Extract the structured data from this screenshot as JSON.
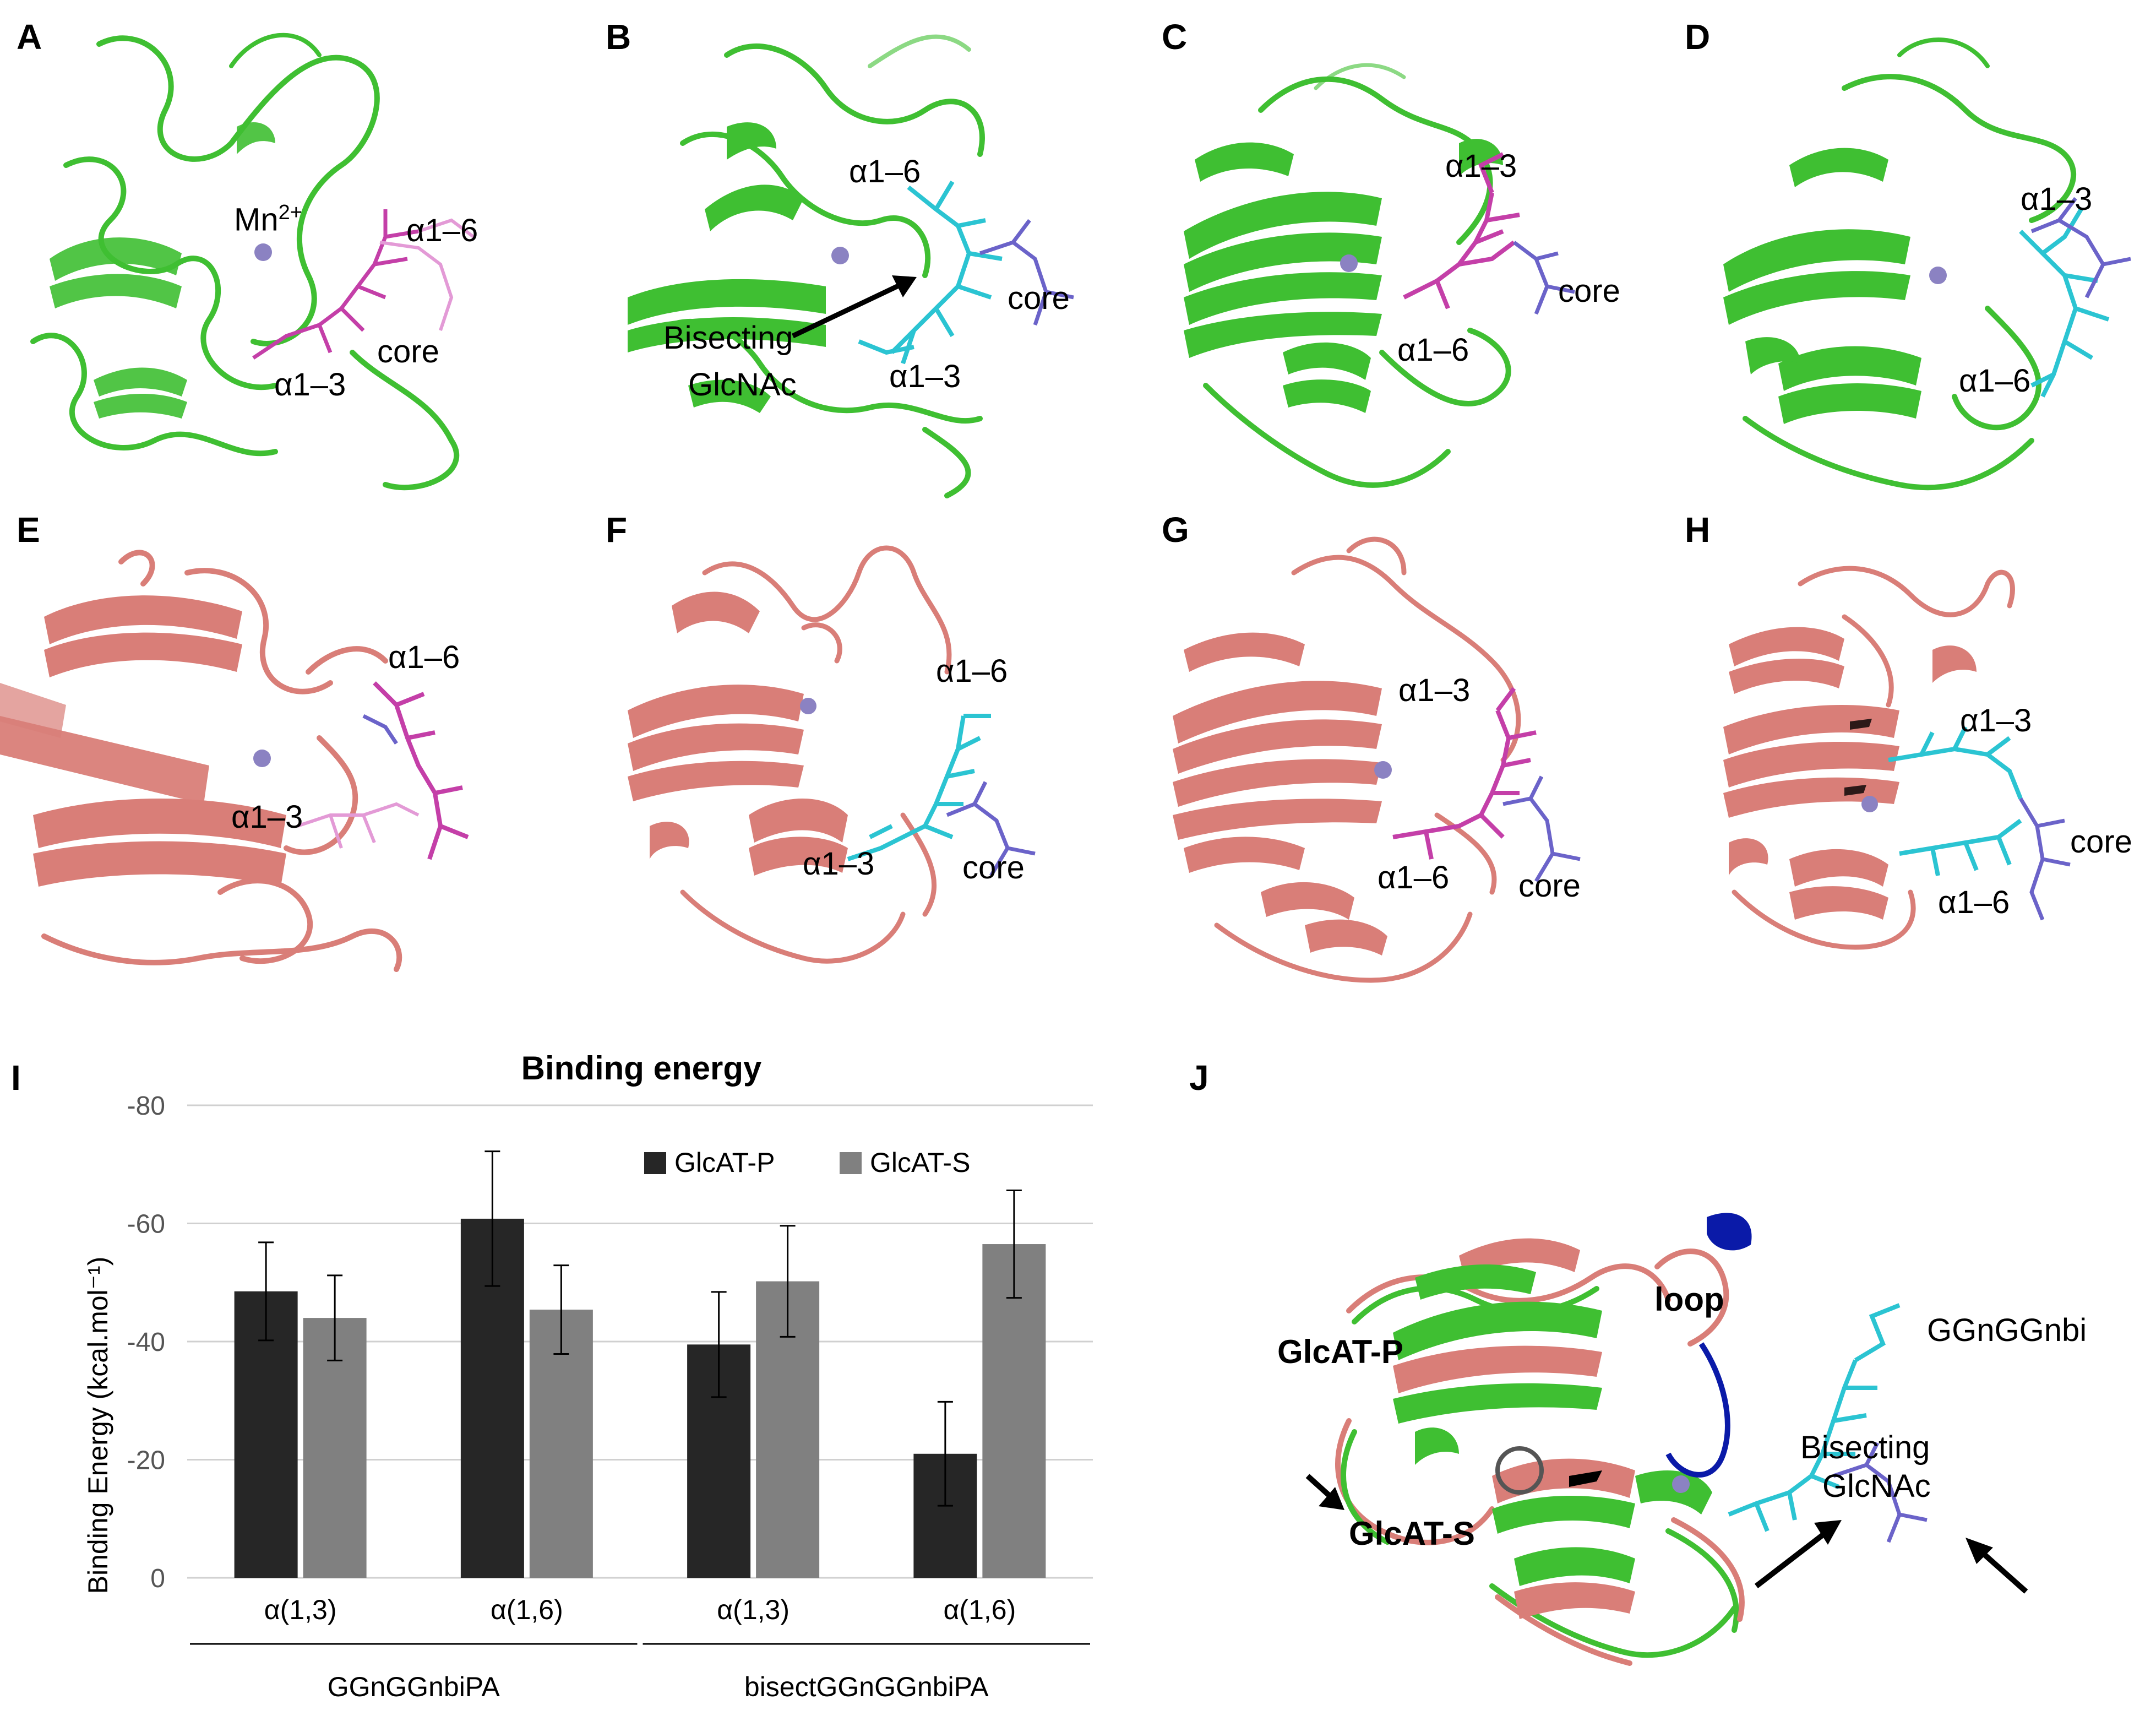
{
  "panels": {
    "A": {
      "label": "A",
      "ann": {
        "mn": "Mn",
        "mn_sup": "2+",
        "a16": "α1–6",
        "core": "core",
        "a13": "α1–3"
      }
    },
    "B": {
      "label": "B",
      "ann": {
        "a16": "α1–6",
        "core": "core",
        "bis1": "Bisecting",
        "bis2": "GlcNAc",
        "a13": "α1–3"
      }
    },
    "C": {
      "label": "C",
      "ann": {
        "a13": "α1–3",
        "core": "core",
        "a16": "α1–6"
      }
    },
    "D": {
      "label": "D",
      "ann": {
        "a13": "α1–3",
        "a16": "α1–6"
      }
    },
    "E": {
      "label": "E",
      "ann": {
        "a16": "α1–6",
        "a13": "α1–3"
      }
    },
    "F": {
      "label": "F",
      "ann": {
        "a16": "α1–6",
        "a13": "α1–3",
        "core": "core"
      }
    },
    "G": {
      "label": "G",
      "ann": {
        "a13": "α1–3",
        "a16": "α1–6",
        "core": "core"
      }
    },
    "H": {
      "label": "H",
      "ann": {
        "a13": "α1–3",
        "core": "core",
        "a16": "α1–6"
      }
    },
    "I": {
      "label": "I"
    },
    "J": {
      "label": "J",
      "ann": {
        "glcatp": "GlcAT-P",
        "glcats": "GlcAT-S",
        "loop": "loop",
        "ggn": "GGnGGnbi",
        "bis1": "Bisecting",
        "bis2": "GlcNAc"
      }
    }
  },
  "colors": {
    "green": "#3fbf32",
    "salmon": "#d97e78",
    "cyan": "#2bc4d2",
    "magenta": "#c43fa8",
    "purple": "#6b63c9",
    "mn": "#8b82c2",
    "loop": "#0a1aa8",
    "bar_p": "#262626",
    "bar_s": "#808080"
  },
  "chart_data": {
    "type": "bar",
    "title": "Binding energy",
    "ylabel": "Binding Energy (kcal.mol⁻¹)",
    "ylim": [
      0,
      -80
    ],
    "yticks": [
      0,
      -20,
      -40,
      -60,
      -80
    ],
    "grid": true,
    "legend_placement": "top-right",
    "categories": [
      "α(1,3)",
      "α(1,6)",
      "α(1,3)",
      "α(1,6)"
    ],
    "groups": [
      {
        "label": "GGnGGnbiPA",
        "span": [
          0,
          1
        ]
      },
      {
        "label": "bisectGGnGGnbiPA",
        "span": [
          2,
          3
        ]
      }
    ],
    "series": [
      {
        "name": "GlcAT-P",
        "values": [
          -48.5,
          -60.8,
          -39.5,
          -21.0
        ],
        "err": [
          8.3,
          11.4,
          8.9,
          8.8
        ]
      },
      {
        "name": "GlcAT-S",
        "values": [
          -44.0,
          -45.4,
          -50.2,
          -56.5
        ],
        "err": [
          7.2,
          7.5,
          9.4,
          9.1
        ]
      }
    ]
  }
}
